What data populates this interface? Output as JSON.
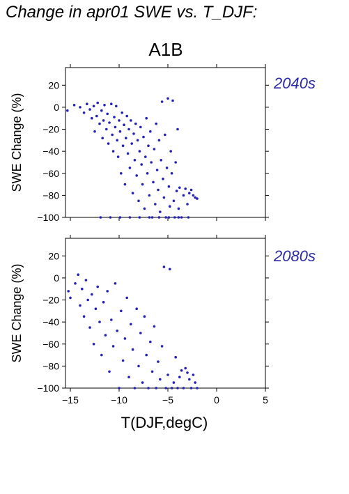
{
  "title": "Change in apr01 SWE vs. T_DJF:",
  "scenario": "A1B",
  "ylabel": "SWE Change (%)",
  "xlabel": "T(DJF,degC)",
  "marker_color": "#2222bb",
  "x_ticks": [
    "−15",
    "−10",
    "−5",
    "0",
    "5"
  ],
  "y_ticks": [
    "20",
    "0",
    "−20",
    "−40",
    "−60",
    "−80",
    "−100"
  ],
  "panels": [
    {
      "period": "2040s"
    },
    {
      "period": "2080s"
    }
  ],
  "chart_data": [
    {
      "type": "scatter",
      "title": "2040s",
      "xlabel": "T(DJF,degC)",
      "ylabel": "SWE Change (%)",
      "xlim": [
        -15.5,
        5
      ],
      "ylim": [
        -100,
        36
      ],
      "grid": false,
      "series": [
        {
          "points": [
            [
              -15.3,
              -3
            ],
            [
              -14.6,
              2
            ],
            [
              -14.0,
              0
            ],
            [
              -13.6,
              -5
            ],
            [
              -13.3,
              3
            ],
            [
              -13.0,
              -2
            ],
            [
              -12.8,
              -10
            ],
            [
              -12.6,
              1
            ],
            [
              -12.5,
              -22
            ],
            [
              -12.3,
              -8
            ],
            [
              -12.2,
              4
            ],
            [
              -12.0,
              -15
            ],
            [
              -11.8,
              -3
            ],
            [
              -11.7,
              -28
            ],
            [
              -11.6,
              -12
            ],
            [
              -11.5,
              2
            ],
            [
              -11.3,
              -20
            ],
            [
              -11.2,
              -6
            ],
            [
              -11.1,
              -33
            ],
            [
              -11.0,
              -14
            ],
            [
              -10.8,
              3
            ],
            [
              -10.7,
              -25
            ],
            [
              -10.6,
              -40
            ],
            [
              -10.5,
              -9
            ],
            [
              -10.4,
              -18
            ],
            [
              -10.3,
              1
            ],
            [
              -10.2,
              -30
            ],
            [
              -10.1,
              -45
            ],
            [
              -10.0,
              -12
            ],
            [
              -9.9,
              -22
            ],
            [
              -9.8,
              -60
            ],
            [
              -9.7,
              -5
            ],
            [
              -9.6,
              -35
            ],
            [
              -9.5,
              -16
            ],
            [
              -9.4,
              -70
            ],
            [
              -9.3,
              -28
            ],
            [
              -9.2,
              -8
            ],
            [
              -9.1,
              -42
            ],
            [
              -9.0,
              -20
            ],
            [
              -8.9,
              -55
            ],
            [
              -8.8,
              -12
            ],
            [
              -8.7,
              -33
            ],
            [
              -8.6,
              -78
            ],
            [
              -8.5,
              -24
            ],
            [
              -8.4,
              -48
            ],
            [
              -8.3,
              -15
            ],
            [
              -8.2,
              -62
            ],
            [
              -8.1,
              -30
            ],
            [
              -8.0,
              -85
            ],
            [
              -7.9,
              -40
            ],
            [
              -7.8,
              -18
            ],
            [
              -7.7,
              -52
            ],
            [
              -7.6,
              -70
            ],
            [
              -7.5,
              -27
            ],
            [
              -7.4,
              -92
            ],
            [
              -7.3,
              -45
            ],
            [
              -7.2,
              -10
            ],
            [
              -7.1,
              -60
            ],
            [
              -7.0,
              -35
            ],
            [
              -6.9,
              -80
            ],
            [
              -6.8,
              -22
            ],
            [
              -6.7,
              -50
            ],
            [
              -6.6,
              -100
            ],
            [
              -6.5,
              -68
            ],
            [
              -6.4,
              -38
            ],
            [
              -6.3,
              -88
            ],
            [
              -6.2,
              -15
            ],
            [
              -6.1,
              -57
            ],
            [
              -6.0,
              -75
            ],
            [
              -5.9,
              -30
            ],
            [
              -5.8,
              -95
            ],
            [
              -5.7,
              -48
            ],
            [
              -5.6,
              5
            ],
            [
              -5.5,
              -65
            ],
            [
              -5.4,
              -82
            ],
            [
              -5.3,
              -25
            ],
            [
              -5.2,
              -100
            ],
            [
              -5.1,
              -55
            ],
            [
              -5.0,
              8
            ],
            [
              -4.9,
              -72
            ],
            [
              -4.8,
              -90
            ],
            [
              -4.7,
              -40
            ],
            [
              -4.6,
              -60
            ],
            [
              -4.5,
              6
            ],
            [
              -4.4,
              -85
            ],
            [
              -4.3,
              -100
            ],
            [
              -4.2,
              -50
            ],
            [
              -4.1,
              -76
            ],
            [
              -4.0,
              -20
            ],
            [
              -3.9,
              -92
            ],
            [
              -3.8,
              -73
            ],
            [
              -3.6,
              -100
            ],
            [
              -3.4,
              -80
            ],
            [
              -3.2,
              -74
            ],
            [
              -3.0,
              -88
            ],
            [
              -2.8,
              -78
            ],
            [
              -2.6,
              -75
            ],
            [
              -2.4,
              -80
            ],
            [
              -2.2,
              -82
            ],
            [
              -2.0,
              -83
            ],
            [
              -11.9,
              -100
            ],
            [
              -10.9,
              -100
            ],
            [
              -9.9,
              -100
            ],
            [
              -8.9,
              -100
            ],
            [
              -7.9,
              -100
            ],
            [
              -6.9,
              -100
            ],
            [
              -5.9,
              -100
            ],
            [
              -4.9,
              -100
            ],
            [
              -3.9,
              -100
            ],
            [
              -2.9,
              -100
            ]
          ]
        }
      ]
    },
    {
      "type": "scatter",
      "title": "2080s",
      "xlabel": "T(DJF,degC)",
      "ylabel": "SWE Change (%)",
      "xlim": [
        -15.5,
        5
      ],
      "ylim": [
        -100,
        36
      ],
      "grid": false,
      "series": [
        {
          "points": [
            [
              -15.2,
              -12
            ],
            [
              -15.0,
              -18
            ],
            [
              -14.5,
              -5
            ],
            [
              -14.2,
              3
            ],
            [
              -14.0,
              -25
            ],
            [
              -13.8,
              -10
            ],
            [
              -13.6,
              -35
            ],
            [
              -13.4,
              -2
            ],
            [
              -13.2,
              -20
            ],
            [
              -13.0,
              -45
            ],
            [
              -12.8,
              -15
            ],
            [
              -12.6,
              -60
            ],
            [
              -12.4,
              -28
            ],
            [
              -12.2,
              -8
            ],
            [
              -12.0,
              -40
            ],
            [
              -11.8,
              -70
            ],
            [
              -11.6,
              -22
            ],
            [
              -11.4,
              -52
            ],
            [
              -11.2,
              -12
            ],
            [
              -11.0,
              -85
            ],
            [
              -10.8,
              -38
            ],
            [
              -10.6,
              -62
            ],
            [
              -10.4,
              -5
            ],
            [
              -10.2,
              -48
            ],
            [
              -10.0,
              -100
            ],
            [
              -9.8,
              -30
            ],
            [
              -9.6,
              -75
            ],
            [
              -9.4,
              -55
            ],
            [
              -9.2,
              -18
            ],
            [
              -9.0,
              -90
            ],
            [
              -8.8,
              -42
            ],
            [
              -8.6,
              -65
            ],
            [
              -8.4,
              -100
            ],
            [
              -8.2,
              -28
            ],
            [
              -8.0,
              -80
            ],
            [
              -7.8,
              -50
            ],
            [
              -7.6,
              -95
            ],
            [
              -7.4,
              -35
            ],
            [
              -7.2,
              -70
            ],
            [
              -7.0,
              -100
            ],
            [
              -6.8,
              -58
            ],
            [
              -6.6,
              -85
            ],
            [
              -6.4,
              -44
            ],
            [
              -6.2,
              -100
            ],
            [
              -6.0,
              -76
            ],
            [
              -5.8,
              -92
            ],
            [
              -5.6,
              -62
            ],
            [
              -5.4,
              10
            ],
            [
              -5.2,
              -100
            ],
            [
              -5.0,
              -88
            ],
            [
              -4.8,
              8
            ],
            [
              -4.6,
              -100
            ],
            [
              -4.4,
              -95
            ],
            [
              -4.2,
              -72
            ],
            [
              -4.0,
              -100
            ],
            [
              -3.8,
              -90
            ],
            [
              -3.6,
              -84
            ],
            [
              -3.4,
              -100
            ],
            [
              -3.2,
              -82
            ],
            [
              -3.0,
              -86
            ],
            [
              -2.8,
              -92
            ],
            [
              -2.6,
              -100
            ],
            [
              -2.4,
              -88
            ],
            [
              -2.2,
              -95
            ],
            [
              -2.0,
              -100
            ]
          ]
        }
      ]
    }
  ]
}
